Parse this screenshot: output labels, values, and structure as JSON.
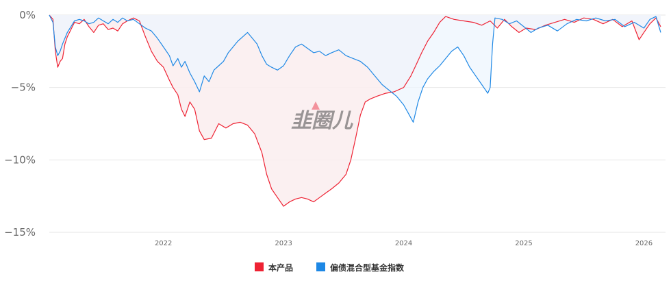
{
  "chart_data": {
    "type": "line",
    "watermark": "韭圈儿",
    "yaxis": {
      "ticks": [
        0,
        -5,
        -10,
        -15
      ],
      "tick_labels": [
        "0%",
        "−5%",
        "−10%",
        "−15%"
      ],
      "ylim": [
        -15,
        0
      ]
    },
    "xaxis": {
      "ticks": [
        2022,
        2023,
        2024,
        2025,
        2026
      ],
      "tick_labels": [
        "2022",
        "2023",
        "2024",
        "2025",
        "2026"
      ],
      "xlim": [
        2021.05,
        2026.18
      ]
    },
    "grid": true,
    "legend_position": "bottom-center",
    "series": [
      {
        "name": "本产品",
        "color": "#ee2233",
        "fill": "#fbeef0",
        "points": [
          [
            2021.05,
            0
          ],
          [
            2021.08,
            -0.3
          ],
          [
            2021.1,
            -2.5
          ],
          [
            2021.12,
            -3.6
          ],
          [
            2021.14,
            -3.2
          ],
          [
            2021.16,
            -3.0
          ],
          [
            2021.18,
            -2.0
          ],
          [
            2021.2,
            -1.5
          ],
          [
            2021.23,
            -1.0
          ],
          [
            2021.26,
            -0.5
          ],
          [
            2021.3,
            -0.6
          ],
          [
            2021.34,
            -0.3
          ],
          [
            2021.38,
            -0.8
          ],
          [
            2021.42,
            -1.2
          ],
          [
            2021.46,
            -0.7
          ],
          [
            2021.5,
            -0.6
          ],
          [
            2021.54,
            -1.0
          ],
          [
            2021.58,
            -0.9
          ],
          [
            2021.62,
            -1.1
          ],
          [
            2021.66,
            -0.6
          ],
          [
            2021.7,
            -0.4
          ],
          [
            2021.75,
            -0.2
          ],
          [
            2021.8,
            -0.4
          ],
          [
            2021.85,
            -1.5
          ],
          [
            2021.9,
            -2.5
          ],
          [
            2021.95,
            -3.2
          ],
          [
            2022.0,
            -3.6
          ],
          [
            2022.05,
            -4.5
          ],
          [
            2022.08,
            -5.0
          ],
          [
            2022.12,
            -5.5
          ],
          [
            2022.15,
            -6.5
          ],
          [
            2022.18,
            -7.0
          ],
          [
            2022.22,
            -6.0
          ],
          [
            2022.26,
            -6.5
          ],
          [
            2022.3,
            -8.0
          ],
          [
            2022.34,
            -8.6
          ],
          [
            2022.4,
            -8.5
          ],
          [
            2022.46,
            -7.5
          ],
          [
            2022.52,
            -7.8
          ],
          [
            2022.58,
            -7.5
          ],
          [
            2022.64,
            -7.4
          ],
          [
            2022.7,
            -7.6
          ],
          [
            2022.76,
            -8.2
          ],
          [
            2022.82,
            -9.5
          ],
          [
            2022.86,
            -11.0
          ],
          [
            2022.9,
            -12.0
          ],
          [
            2022.95,
            -12.6
          ],
          [
            2023.0,
            -13.2
          ],
          [
            2023.05,
            -12.9
          ],
          [
            2023.1,
            -12.7
          ],
          [
            2023.15,
            -12.6
          ],
          [
            2023.2,
            -12.7
          ],
          [
            2023.25,
            -12.9
          ],
          [
            2023.3,
            -12.6
          ],
          [
            2023.35,
            -12.3
          ],
          [
            2023.4,
            -12.0
          ],
          [
            2023.46,
            -11.6
          ],
          [
            2023.52,
            -11.0
          ],
          [
            2023.56,
            -10.0
          ],
          [
            2023.6,
            -8.5
          ],
          [
            2023.64,
            -6.9
          ],
          [
            2023.68,
            -6.0
          ],
          [
            2023.72,
            -5.8
          ],
          [
            2023.78,
            -5.6
          ],
          [
            2023.85,
            -5.4
          ],
          [
            2023.92,
            -5.3
          ],
          [
            2024.0,
            -5.0
          ],
          [
            2024.06,
            -4.2
          ],
          [
            2024.1,
            -3.5
          ],
          [
            2024.15,
            -2.6
          ],
          [
            2024.2,
            -1.8
          ],
          [
            2024.25,
            -1.2
          ],
          [
            2024.3,
            -0.5
          ],
          [
            2024.35,
            -0.1
          ],
          [
            2024.42,
            -0.3
          ],
          [
            2024.5,
            -0.4
          ],
          [
            2024.58,
            -0.5
          ],
          [
            2024.65,
            -0.7
          ],
          [
            2024.72,
            -0.4
          ],
          [
            2024.78,
            -0.9
          ],
          [
            2024.84,
            -0.3
          ],
          [
            2024.9,
            -0.8
          ],
          [
            2024.96,
            -1.2
          ],
          [
            2025.02,
            -0.9
          ],
          [
            2025.1,
            -1.0
          ],
          [
            2025.18,
            -0.7
          ],
          [
            2025.26,
            -0.5
          ],
          [
            2025.34,
            -0.3
          ],
          [
            2025.42,
            -0.5
          ],
          [
            2025.5,
            -0.2
          ],
          [
            2025.58,
            -0.3
          ],
          [
            2025.66,
            -0.6
          ],
          [
            2025.74,
            -0.3
          ],
          [
            2025.82,
            -0.8
          ],
          [
            2025.9,
            -0.4
          ],
          [
            2025.96,
            -1.7
          ],
          [
            2026.0,
            -1.2
          ],
          [
            2026.05,
            -0.6
          ],
          [
            2026.1,
            -0.2
          ],
          [
            2026.14,
            -0.8
          ]
        ]
      },
      {
        "name": "偏债混合型基金指数",
        "color": "#1e88e5",
        "fill": "#eef5fd",
        "points": [
          [
            2021.05,
            0
          ],
          [
            2021.08,
            -0.5
          ],
          [
            2021.1,
            -2.2
          ],
          [
            2021.12,
            -2.8
          ],
          [
            2021.14,
            -2.5
          ],
          [
            2021.16,
            -2.0
          ],
          [
            2021.18,
            -1.6
          ],
          [
            2021.2,
            -1.2
          ],
          [
            2021.23,
            -0.8
          ],
          [
            2021.26,
            -0.4
          ],
          [
            2021.3,
            -0.3
          ],
          [
            2021.34,
            -0.4
          ],
          [
            2021.38,
            -0.6
          ],
          [
            2021.42,
            -0.5
          ],
          [
            2021.46,
            -0.2
          ],
          [
            2021.5,
            -0.4
          ],
          [
            2021.54,
            -0.6
          ],
          [
            2021.58,
            -0.3
          ],
          [
            2021.62,
            -0.5
          ],
          [
            2021.66,
            -0.2
          ],
          [
            2021.7,
            -0.4
          ],
          [
            2021.75,
            -0.3
          ],
          [
            2021.8,
            -0.6
          ],
          [
            2021.85,
            -0.9
          ],
          [
            2021.9,
            -1.1
          ],
          [
            2021.95,
            -1.6
          ],
          [
            2022.0,
            -2.2
          ],
          [
            2022.05,
            -2.8
          ],
          [
            2022.08,
            -3.5
          ],
          [
            2022.12,
            -3.0
          ],
          [
            2022.15,
            -3.6
          ],
          [
            2022.18,
            -3.2
          ],
          [
            2022.22,
            -4.0
          ],
          [
            2022.26,
            -4.6
          ],
          [
            2022.3,
            -5.3
          ],
          [
            2022.34,
            -4.2
          ],
          [
            2022.38,
            -4.6
          ],
          [
            2022.42,
            -3.8
          ],
          [
            2022.46,
            -3.5
          ],
          [
            2022.5,
            -3.2
          ],
          [
            2022.54,
            -2.6
          ],
          [
            2022.58,
            -2.2
          ],
          [
            2022.62,
            -1.8
          ],
          [
            2022.66,
            -1.5
          ],
          [
            2022.7,
            -1.2
          ],
          [
            2022.74,
            -1.6
          ],
          [
            2022.78,
            -2.0
          ],
          [
            2022.82,
            -2.8
          ],
          [
            2022.86,
            -3.4
          ],
          [
            2022.9,
            -3.6
          ],
          [
            2022.95,
            -3.8
          ],
          [
            2023.0,
            -3.5
          ],
          [
            2023.05,
            -2.8
          ],
          [
            2023.1,
            -2.2
          ],
          [
            2023.15,
            -2.0
          ],
          [
            2023.2,
            -2.3
          ],
          [
            2023.25,
            -2.6
          ],
          [
            2023.3,
            -2.5
          ],
          [
            2023.35,
            -2.8
          ],
          [
            2023.4,
            -2.6
          ],
          [
            2023.46,
            -2.4
          ],
          [
            2023.52,
            -2.8
          ],
          [
            2023.58,
            -3.0
          ],
          [
            2023.64,
            -3.2
          ],
          [
            2023.7,
            -3.6
          ],
          [
            2023.76,
            -4.2
          ],
          [
            2023.82,
            -4.8
          ],
          [
            2023.88,
            -5.2
          ],
          [
            2023.94,
            -5.6
          ],
          [
            2024.0,
            -6.2
          ],
          [
            2024.04,
            -6.8
          ],
          [
            2024.08,
            -7.4
          ],
          [
            2024.12,
            -6.0
          ],
          [
            2024.16,
            -5.0
          ],
          [
            2024.2,
            -4.4
          ],
          [
            2024.25,
            -3.9
          ],
          [
            2024.3,
            -3.5
          ],
          [
            2024.35,
            -3.0
          ],
          [
            2024.4,
            -2.5
          ],
          [
            2024.45,
            -2.2
          ],
          [
            2024.5,
            -2.8
          ],
          [
            2024.55,
            -3.6
          ],
          [
            2024.6,
            -4.2
          ],
          [
            2024.65,
            -4.8
          ],
          [
            2024.7,
            -5.4
          ],
          [
            2024.72,
            -5.0
          ],
          [
            2024.74,
            -2.0
          ],
          [
            2024.76,
            -0.2
          ],
          [
            2024.82,
            -0.3
          ],
          [
            2024.88,
            -0.6
          ],
          [
            2024.94,
            -0.4
          ],
          [
            2025.0,
            -0.8
          ],
          [
            2025.06,
            -1.2
          ],
          [
            2025.12,
            -0.9
          ],
          [
            2025.2,
            -0.7
          ],
          [
            2025.28,
            -1.1
          ],
          [
            2025.36,
            -0.6
          ],
          [
            2025.44,
            -0.3
          ],
          [
            2025.52,
            -0.4
          ],
          [
            2025.6,
            -0.2
          ],
          [
            2025.68,
            -0.4
          ],
          [
            2025.76,
            -0.3
          ],
          [
            2025.84,
            -0.8
          ],
          [
            2025.92,
            -0.5
          ],
          [
            2026.0,
            -0.9
          ],
          [
            2026.05,
            -0.3
          ],
          [
            2026.1,
            -0.1
          ],
          [
            2026.14,
            -1.2
          ]
        ]
      }
    ]
  }
}
